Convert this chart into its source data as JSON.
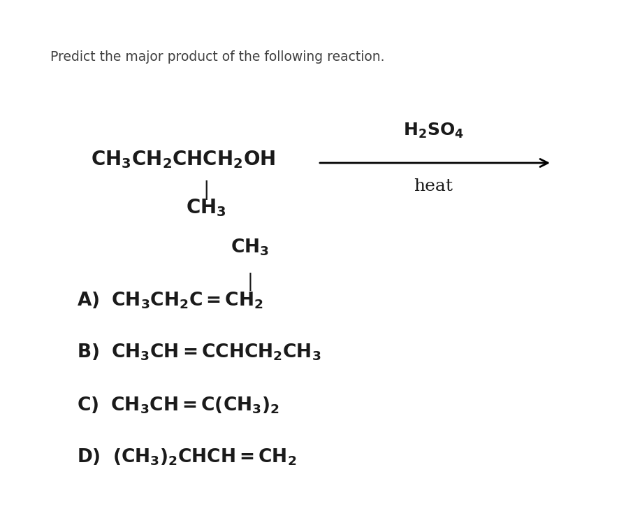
{
  "background_color": "#ffffff",
  "title": "Predict the major product of the following reaction.",
  "title_fontsize": 13.5,
  "text_color": "#1a1a1a",
  "main_fontsize": 20,
  "answer_fontsize": 19,
  "reagent_fontsize": 18,
  "heat_fontsize": 18,
  "font_family": "serif",
  "reactant_main": "$\\mathbf{CH_3CH_2CHCH_2OH}$",
  "reactant_sub": "$\\mathbf{CH_3}$",
  "reagent_top": "$\\mathbf{H_2SO_4}$",
  "reagent_bottom": "heat",
  "answer_A_top": "$\\mathbf{CH_3}$",
  "answer_A": "$\\mathbf{A)\\ \\ CH_3CH_2C{=}CH_2}$",
  "answer_B": "$\\mathbf{B)\\ \\ CH_3CH{=}CCHCH_2CH_3}$",
  "answer_C": "$\\mathbf{C)\\ \\ CH_3CH{=}C(CH_3)_2}$",
  "answer_D": "$\\mathbf{D)\\ \\ (CH_3)_2CHCH{=}CH_2}$"
}
